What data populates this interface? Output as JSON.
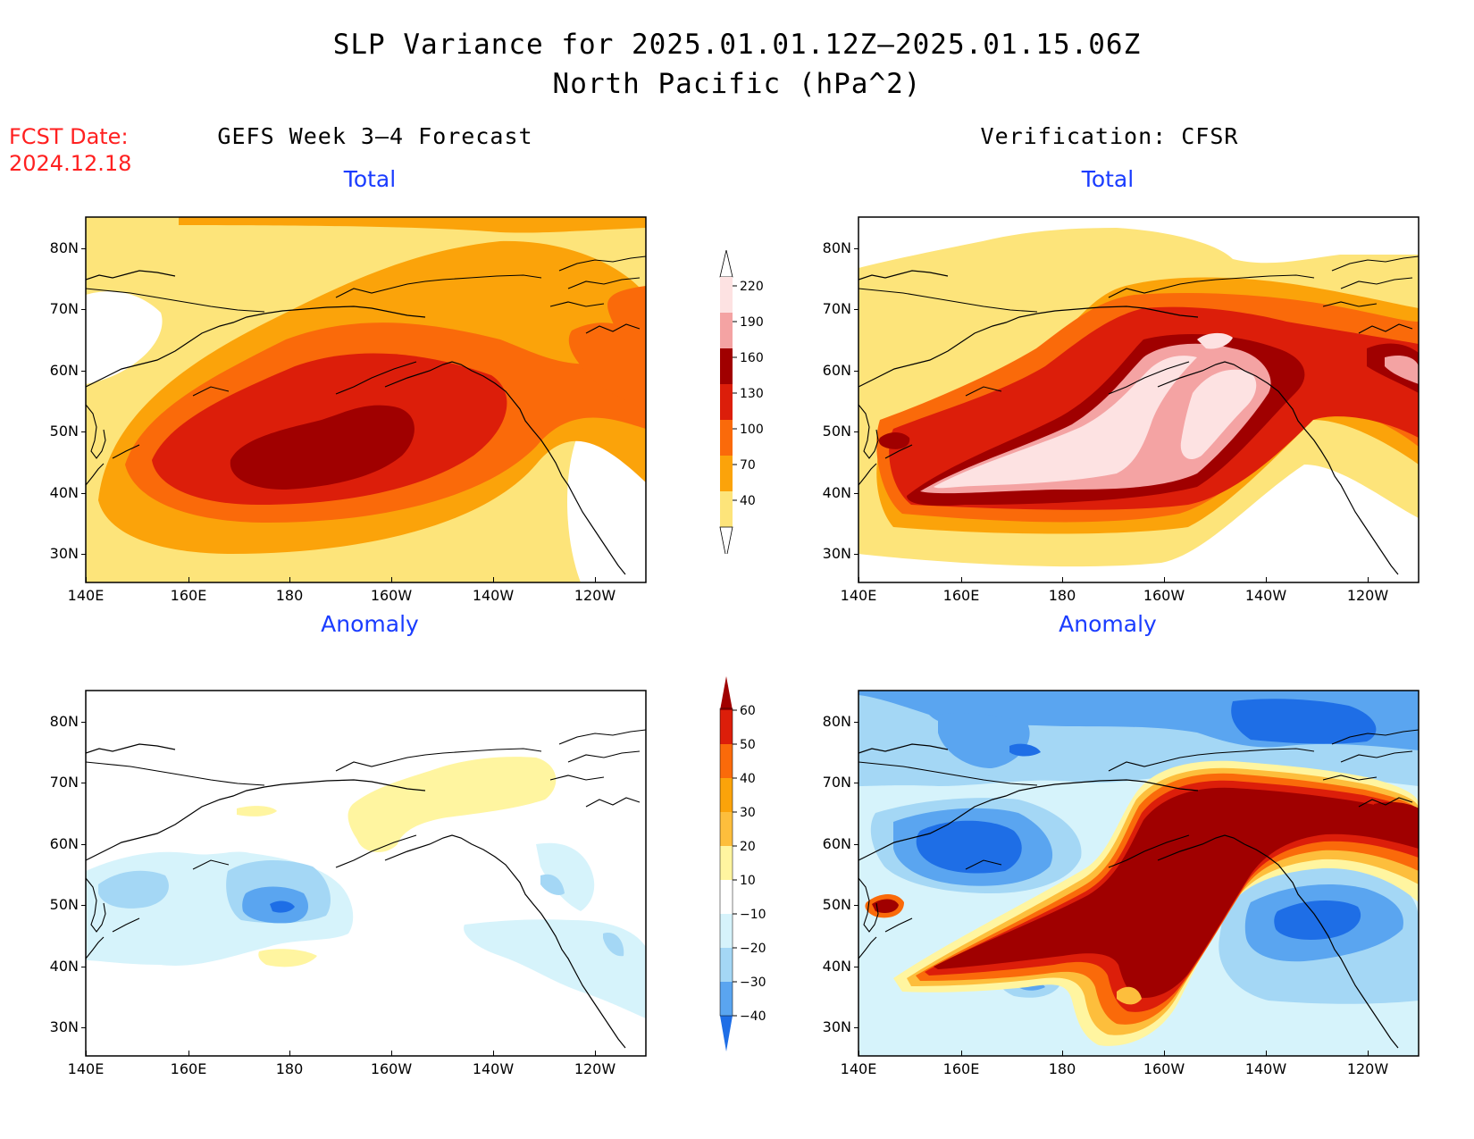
{
  "title": {
    "line1": "SLP Variance for 2025.01.01.12Z–2025.01.15.06Z",
    "line2": "North Pacific (hPa^2)"
  },
  "fcst": {
    "label": "FCST Date:",
    "date": "2024.12.18"
  },
  "columns": {
    "left": "GEFS Week 3–4 Forecast",
    "right": "Verification: CFSR"
  },
  "panels": [
    {
      "id": "fcst-total",
      "subtitle": "Total"
    },
    {
      "id": "verif-total",
      "subtitle": "Total"
    },
    {
      "id": "fcst-anomaly",
      "subtitle": "Anomaly"
    },
    {
      "id": "verif-anomaly",
      "subtitle": "Anomaly"
    }
  ],
  "axes": {
    "lon_labels": [
      "140E",
      "160E",
      "180",
      "160W",
      "140W",
      "120W"
    ],
    "lat_labels": [
      "80N",
      "70N",
      "60N",
      "50N",
      "40N",
      "30N"
    ]
  },
  "colorbars": {
    "total": {
      "levels": [
        "220",
        "190",
        "160",
        "130",
        "100",
        "70",
        "40"
      ],
      "colors": [
        "#fde2e2",
        "#f4a3a3",
        "#a00000",
        "#dc1e0a",
        "#fa6a0a",
        "#fba30a",
        "#fde47a"
      ]
    },
    "anomaly": {
      "levels": [
        "60",
        "50",
        "40",
        "30",
        "20",
        "10",
        "−10",
        "−20",
        "−30",
        "−40"
      ],
      "colors": [
        "#a00000",
        "#dc1e0a",
        "#fa6a0a",
        "#fba30a",
        "#fdbe3c",
        "#fff5a0",
        "#ffffff",
        "#d6f3fb",
        "#a4d7f5",
        "#5aa5f0",
        "#1e6ee6"
      ]
    }
  }
}
